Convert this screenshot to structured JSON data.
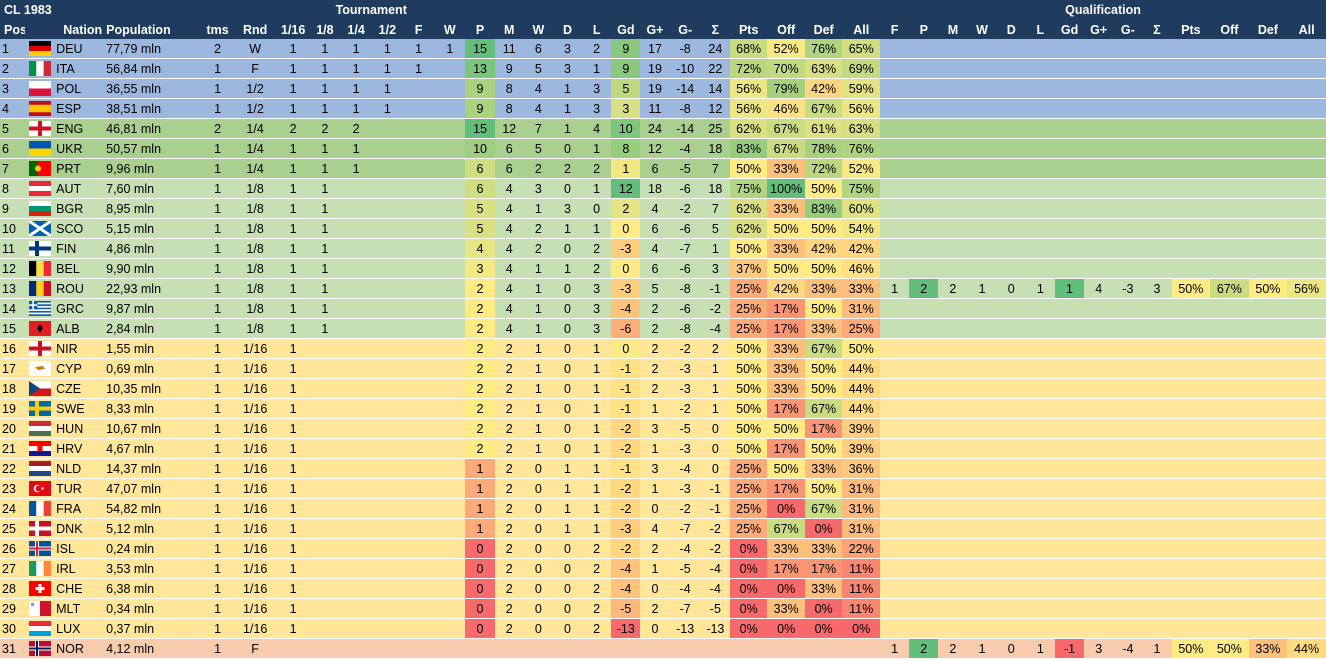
{
  "header": {
    "title": "CL 1983",
    "tournament_label": "Tournament",
    "qualification_label": "Qualification",
    "cols": [
      "Pos",
      "Nation",
      "Population",
      "tms",
      "Rnd",
      "1/16",
      "1/8",
      "1/4",
      "1/2",
      "F",
      "W",
      "P",
      "M",
      "W",
      "D",
      "L",
      "Gd",
      "G+",
      "G-",
      "Σ",
      "Pts",
      "Off",
      "Def",
      "All"
    ],
    "qcols": [
      "F",
      "P",
      "M",
      "W",
      "D",
      "L",
      "Gd",
      "G+",
      "G-",
      "Σ",
      "Pts",
      "Off",
      "Def",
      "All"
    ]
  },
  "colors": {
    "header_bg": "#1f3b5e",
    "zone_blue": "#9db8de",
    "zone_green": "#a9d08e",
    "zone_lightgreen": "#c6e0b4",
    "zone_yellow": "#ffe699",
    "zone_pink": "#f8cbad",
    "cell_green": "#63be7b",
    "cell_lightgreen": "#c4e3b0",
    "cell_yellow": "#ffeb84",
    "cell_orange": "#fbb37d",
    "cell_red": "#f8696b"
  },
  "rows": [
    {
      "pos": "1",
      "nation": "DEU",
      "flag": "deu-flag",
      "pop": "77,79 mln",
      "tms": "2",
      "rnd": "W",
      "t": [
        "1",
        "1",
        "1",
        "1",
        "1",
        "1"
      ],
      "p": "15",
      "m": "11",
      "w": "6",
      "d": "3",
      "l": "2",
      "gd": "9",
      "gp": "17",
      "gm": "-8",
      "s": "24",
      "pts": "68%",
      "off": "52%",
      "def": "76%",
      "all": "65%",
      "zone": "blue",
      "q": null
    },
    {
      "pos": "2",
      "nation": "ITA",
      "flag": "ita-flag",
      "pop": "56,84 mln",
      "tms": "1",
      "rnd": "F",
      "t": [
        "1",
        "1",
        "1",
        "1",
        "1",
        ""
      ],
      "p": "13",
      "m": "9",
      "w": "5",
      "d": "3",
      "l": "1",
      "gd": "9",
      "gp": "19",
      "gm": "-10",
      "s": "22",
      "pts": "72%",
      "off": "70%",
      "def": "63%",
      "all": "69%",
      "zone": "blue",
      "q": null
    },
    {
      "pos": "3",
      "nation": "POL",
      "flag": "pol-flag",
      "pop": "36,55 mln",
      "tms": "1",
      "rnd": "1/2",
      "t": [
        "1",
        "1",
        "1",
        "1",
        "",
        ""
      ],
      "p": "9",
      "m": "8",
      "w": "4",
      "d": "1",
      "l": "3",
      "gd": "5",
      "gp": "19",
      "gm": "-14",
      "s": "14",
      "pts": "56%",
      "off": "79%",
      "def": "42%",
      "all": "59%",
      "zone": "blue",
      "q": null
    },
    {
      "pos": "4",
      "nation": "ESP",
      "flag": "esp-flag",
      "pop": "38,51 mln",
      "tms": "1",
      "rnd": "1/2",
      "t": [
        "1",
        "1",
        "1",
        "1",
        "",
        ""
      ],
      "p": "9",
      "m": "8",
      "w": "4",
      "d": "1",
      "l": "3",
      "gd": "3",
      "gp": "11",
      "gm": "-8",
      "s": "12",
      "pts": "56%",
      "off": "46%",
      "def": "67%",
      "all": "56%",
      "zone": "blue",
      "q": null
    },
    {
      "pos": "5",
      "nation": "ENG",
      "flag": "eng-flag",
      "pop": "46,81 mln",
      "tms": "2",
      "rnd": "1/4",
      "t": [
        "2",
        "2",
        "2",
        "",
        "",
        ""
      ],
      "p": "15",
      "m": "12",
      "w": "7",
      "d": "1",
      "l": "4",
      "gd": "10",
      "gp": "24",
      "gm": "-14",
      "s": "25",
      "pts": "62%",
      "off": "67%",
      "def": "61%",
      "all": "63%",
      "zone": "green",
      "q": null
    },
    {
      "pos": "6",
      "nation": "UKR",
      "flag": "ukr-flag",
      "pop": "50,57 mln",
      "tms": "1",
      "rnd": "1/4",
      "t": [
        "1",
        "1",
        "1",
        "",
        "",
        ""
      ],
      "p": "10",
      "m": "6",
      "w": "5",
      "d": "0",
      "l": "1",
      "gd": "8",
      "gp": "12",
      "gm": "-4",
      "s": "18",
      "pts": "83%",
      "off": "67%",
      "def": "78%",
      "all": "76%",
      "zone": "green",
      "q": null
    },
    {
      "pos": "7",
      "nation": "PRT",
      "flag": "prt-flag",
      "pop": "9,96 mln",
      "tms": "1",
      "rnd": "1/4",
      "t": [
        "1",
        "1",
        "1",
        "",
        "",
        ""
      ],
      "p": "6",
      "m": "6",
      "w": "2",
      "d": "2",
      "l": "2",
      "gd": "1",
      "gp": "6",
      "gm": "-5",
      "s": "7",
      "pts": "50%",
      "off": "33%",
      "def": "72%",
      "all": "52%",
      "zone": "green",
      "q": null
    },
    {
      "pos": "8",
      "nation": "AUT",
      "flag": "aut-flag",
      "pop": "7,60 mln",
      "tms": "1",
      "rnd": "1/8",
      "t": [
        "1",
        "1",
        "",
        "",
        "",
        ""
      ],
      "p": "6",
      "m": "4",
      "w": "3",
      "d": "0",
      "l": "1",
      "gd": "12",
      "gp": "18",
      "gm": "-6",
      "s": "18",
      "pts": "75%",
      "off": "100%",
      "def": "50%",
      "all": "75%",
      "zone": "lgreen",
      "q": null
    },
    {
      "pos": "9",
      "nation": "BGR",
      "flag": "bgr-flag",
      "pop": "8,95 mln",
      "tms": "1",
      "rnd": "1/8",
      "t": [
        "1",
        "1",
        "",
        "",
        "",
        ""
      ],
      "p": "5",
      "m": "4",
      "w": "1",
      "d": "3",
      "l": "0",
      "gd": "2",
      "gp": "4",
      "gm": "-2",
      "s": "7",
      "pts": "62%",
      "off": "33%",
      "def": "83%",
      "all": "60%",
      "zone": "lgreen",
      "q": null
    },
    {
      "pos": "10",
      "nation": "SCO",
      "flag": "sco-flag",
      "pop": "5,15 mln",
      "tms": "1",
      "rnd": "1/8",
      "t": [
        "1",
        "1",
        "",
        "",
        "",
        ""
      ],
      "p": "5",
      "m": "4",
      "w": "2",
      "d": "1",
      "l": "1",
      "gd": "0",
      "gp": "6",
      "gm": "-6",
      "s": "5",
      "pts": "62%",
      "off": "50%",
      "def": "50%",
      "all": "54%",
      "zone": "lgreen",
      "q": null
    },
    {
      "pos": "11",
      "nation": "FIN",
      "flag": "fin-flag",
      "pop": "4,86 mln",
      "tms": "1",
      "rnd": "1/8",
      "t": [
        "1",
        "1",
        "",
        "",
        "",
        ""
      ],
      "p": "4",
      "m": "4",
      "w": "2",
      "d": "0",
      "l": "2",
      "gd": "-3",
      "gp": "4",
      "gm": "-7",
      "s": "1",
      "pts": "50%",
      "off": "33%",
      "def": "42%",
      "all": "42%",
      "zone": "lgreen",
      "q": null
    },
    {
      "pos": "12",
      "nation": "BEL",
      "flag": "bel-flag",
      "pop": "9,90 mln",
      "tms": "1",
      "rnd": "1/8",
      "t": [
        "1",
        "1",
        "",
        "",
        "",
        ""
      ],
      "p": "3",
      "m": "4",
      "w": "1",
      "d": "1",
      "l": "2",
      "gd": "0",
      "gp": "6",
      "gm": "-6",
      "s": "3",
      "pts": "37%",
      "off": "50%",
      "def": "50%",
      "all": "46%",
      "zone": "lgreen",
      "q": null
    },
    {
      "pos": "13",
      "nation": "ROU",
      "flag": "rou-flag",
      "pop": "22,93 mln",
      "tms": "1",
      "rnd": "1/8",
      "t": [
        "1",
        "1",
        "",
        "",
        "",
        ""
      ],
      "p": "2",
      "m": "4",
      "w": "1",
      "d": "0",
      "l": "3",
      "gd": "-3",
      "gp": "5",
      "gm": "-8",
      "s": "-1",
      "pts": "25%",
      "off": "42%",
      "def": "33%",
      "all": "33%",
      "zone": "lgreen",
      "q": {
        "f": "1",
        "p": "2",
        "m": "2",
        "w": "1",
        "d": "0",
        "l": "1",
        "gd": "1",
        "gp": "4",
        "gm": "-3",
        "s": "3",
        "pts": "50%",
        "off": "67%",
        "def": "50%",
        "all": "56%"
      }
    },
    {
      "pos": "14",
      "nation": "GRC",
      "flag": "grc-flag",
      "pop": "9,87 mln",
      "tms": "1",
      "rnd": "1/8",
      "t": [
        "1",
        "1",
        "",
        "",
        "",
        ""
      ],
      "p": "2",
      "m": "4",
      "w": "1",
      "d": "0",
      "l": "3",
      "gd": "-4",
      "gp": "2",
      "gm": "-6",
      "s": "-2",
      "pts": "25%",
      "off": "17%",
      "def": "50%",
      "all": "31%",
      "zone": "lgreen",
      "q": null
    },
    {
      "pos": "15",
      "nation": "ALB",
      "flag": "alb-flag",
      "pop": "2,84 mln",
      "tms": "1",
      "rnd": "1/8",
      "t": [
        "1",
        "1",
        "",
        "",
        "",
        ""
      ],
      "p": "2",
      "m": "4",
      "w": "1",
      "d": "0",
      "l": "3",
      "gd": "-6",
      "gp": "2",
      "gm": "-8",
      "s": "-4",
      "pts": "25%",
      "off": "17%",
      "def": "33%",
      "all": "25%",
      "zone": "lgreen",
      "q": null
    },
    {
      "pos": "16",
      "nation": "NIR",
      "flag": "nir-flag",
      "pop": "1,55 mln",
      "tms": "1",
      "rnd": "1/16",
      "t": [
        "1",
        "",
        "",
        "",
        "",
        ""
      ],
      "p": "2",
      "m": "2",
      "w": "1",
      "d": "0",
      "l": "1",
      "gd": "0",
      "gp": "2",
      "gm": "-2",
      "s": "2",
      "pts": "50%",
      "off": "33%",
      "def": "67%",
      "all": "50%",
      "zone": "yellow",
      "q": null
    },
    {
      "pos": "17",
      "nation": "CYP",
      "flag": "cyp-flag",
      "pop": "0,69 mln",
      "tms": "1",
      "rnd": "1/16",
      "t": [
        "1",
        "",
        "",
        "",
        "",
        ""
      ],
      "p": "2",
      "m": "2",
      "w": "1",
      "d": "0",
      "l": "1",
      "gd": "-1",
      "gp": "2",
      "gm": "-3",
      "s": "1",
      "pts": "50%",
      "off": "33%",
      "def": "50%",
      "all": "44%",
      "zone": "yellow",
      "q": null
    },
    {
      "pos": "18",
      "nation": "CZE",
      "flag": "cze-flag",
      "pop": "10,35 mln",
      "tms": "1",
      "rnd": "1/16",
      "t": [
        "1",
        "",
        "",
        "",
        "",
        ""
      ],
      "p": "2",
      "m": "2",
      "w": "1",
      "d": "0",
      "l": "1",
      "gd": "-1",
      "gp": "2",
      "gm": "-3",
      "s": "1",
      "pts": "50%",
      "off": "33%",
      "def": "50%",
      "all": "44%",
      "zone": "yellow",
      "q": null
    },
    {
      "pos": "19",
      "nation": "SWE",
      "flag": "swe-flag",
      "pop": "8,33 mln",
      "tms": "1",
      "rnd": "1/16",
      "t": [
        "1",
        "",
        "",
        "",
        "",
        ""
      ],
      "p": "2",
      "m": "2",
      "w": "1",
      "d": "0",
      "l": "1",
      "gd": "-1",
      "gp": "1",
      "gm": "-2",
      "s": "1",
      "pts": "50%",
      "off": "17%",
      "def": "67%",
      "all": "44%",
      "zone": "yellow",
      "q": null
    },
    {
      "pos": "20",
      "nation": "HUN",
      "flag": "hun-flag",
      "pop": "10,67 mln",
      "tms": "1",
      "rnd": "1/16",
      "t": [
        "1",
        "",
        "",
        "",
        "",
        ""
      ],
      "p": "2",
      "m": "2",
      "w": "1",
      "d": "0",
      "l": "1",
      "gd": "-2",
      "gp": "3",
      "gm": "-5",
      "s": "0",
      "pts": "50%",
      "off": "50%",
      "def": "17%",
      "all": "39%",
      "zone": "yellow",
      "q": null
    },
    {
      "pos": "21",
      "nation": "HRV",
      "flag": "hrv-flag",
      "pop": "4,67 mln",
      "tms": "1",
      "rnd": "1/16",
      "t": [
        "1",
        "",
        "",
        "",
        "",
        ""
      ],
      "p": "2",
      "m": "2",
      "w": "1",
      "d": "0",
      "l": "1",
      "gd": "-2",
      "gp": "1",
      "gm": "-3",
      "s": "0",
      "pts": "50%",
      "off": "17%",
      "def": "50%",
      "all": "39%",
      "zone": "yellow",
      "q": null
    },
    {
      "pos": "22",
      "nation": "NLD",
      "flag": "nld-flag",
      "pop": "14,37 mln",
      "tms": "1",
      "rnd": "1/16",
      "t": [
        "1",
        "",
        "",
        "",
        "",
        ""
      ],
      "p": "1",
      "m": "2",
      "w": "0",
      "d": "1",
      "l": "1",
      "gd": "-1",
      "gp": "3",
      "gm": "-4",
      "s": "0",
      "pts": "25%",
      "off": "50%",
      "def": "33%",
      "all": "36%",
      "zone": "yellow",
      "q": null
    },
    {
      "pos": "23",
      "nation": "TUR",
      "flag": "tur-flag",
      "pop": "47,07 mln",
      "tms": "1",
      "rnd": "1/16",
      "t": [
        "1",
        "",
        "",
        "",
        "",
        ""
      ],
      "p": "1",
      "m": "2",
      "w": "0",
      "d": "1",
      "l": "1",
      "gd": "-2",
      "gp": "1",
      "gm": "-3",
      "s": "-1",
      "pts": "25%",
      "off": "17%",
      "def": "50%",
      "all": "31%",
      "zone": "yellow",
      "q": null
    },
    {
      "pos": "24",
      "nation": "FRA",
      "flag": "fra-flag",
      "pop": "54,82 mln",
      "tms": "1",
      "rnd": "1/16",
      "t": [
        "1",
        "",
        "",
        "",
        "",
        ""
      ],
      "p": "1",
      "m": "2",
      "w": "0",
      "d": "1",
      "l": "1",
      "gd": "-2",
      "gp": "0",
      "gm": "-2",
      "s": "-1",
      "pts": "25%",
      "off": "0%",
      "def": "67%",
      "all": "31%",
      "zone": "yellow",
      "q": null
    },
    {
      "pos": "25",
      "nation": "DNK",
      "flag": "dnk-flag",
      "pop": "5,12 mln",
      "tms": "1",
      "rnd": "1/16",
      "t": [
        "1",
        "",
        "",
        "",
        "",
        ""
      ],
      "p": "1",
      "m": "2",
      "w": "0",
      "d": "1",
      "l": "1",
      "gd": "-3",
      "gp": "4",
      "gm": "-7",
      "s": "-2",
      "pts": "25%",
      "off": "67%",
      "def": "0%",
      "all": "31%",
      "zone": "yellow",
      "q": null
    },
    {
      "pos": "26",
      "nation": "ISL",
      "flag": "isl-flag",
      "pop": "0,24 mln",
      "tms": "1",
      "rnd": "1/16",
      "t": [
        "1",
        "",
        "",
        "",
        "",
        ""
      ],
      "p": "0",
      "m": "2",
      "w": "0",
      "d": "0",
      "l": "2",
      "gd": "-2",
      "gp": "2",
      "gm": "-4",
      "s": "-2",
      "pts": "0%",
      "off": "33%",
      "def": "33%",
      "all": "22%",
      "zone": "yellow",
      "q": null
    },
    {
      "pos": "27",
      "nation": "IRL",
      "flag": "irl-flag",
      "pop": "3,53 mln",
      "tms": "1",
      "rnd": "1/16",
      "t": [
        "1",
        "",
        "",
        "",
        "",
        ""
      ],
      "p": "0",
      "m": "2",
      "w": "0",
      "d": "0",
      "l": "2",
      "gd": "-4",
      "gp": "1",
      "gm": "-5",
      "s": "-4",
      "pts": "0%",
      "off": "17%",
      "def": "17%",
      "all": "11%",
      "zone": "yellow",
      "q": null
    },
    {
      "pos": "28",
      "nation": "CHE",
      "flag": "che-flag",
      "pop": "6,38 mln",
      "tms": "1",
      "rnd": "1/16",
      "t": [
        "1",
        "",
        "",
        "",
        "",
        ""
      ],
      "p": "0",
      "m": "2",
      "w": "0",
      "d": "0",
      "l": "2",
      "gd": "-4",
      "gp": "0",
      "gm": "-4",
      "s": "-4",
      "pts": "0%",
      "off": "0%",
      "def": "33%",
      "all": "11%",
      "zone": "yellow",
      "q": null
    },
    {
      "pos": "29",
      "nation": "MLT",
      "flag": "mlt-flag",
      "pop": "0,34 mln",
      "tms": "1",
      "rnd": "1/16",
      "t": [
        "1",
        "",
        "",
        "",
        "",
        ""
      ],
      "p": "0",
      "m": "2",
      "w": "0",
      "d": "0",
      "l": "2",
      "gd": "-5",
      "gp": "2",
      "gm": "-7",
      "s": "-5",
      "pts": "0%",
      "off": "33%",
      "def": "0%",
      "all": "11%",
      "zone": "yellow",
      "q": null
    },
    {
      "pos": "30",
      "nation": "LUX",
      "flag": "lux-flag",
      "pop": "0,37 mln",
      "tms": "1",
      "rnd": "1/16",
      "t": [
        "1",
        "",
        "",
        "",
        "",
        ""
      ],
      "p": "0",
      "m": "2",
      "w": "0",
      "d": "0",
      "l": "2",
      "gd": "-13",
      "gp": "0",
      "gm": "-13",
      "s": "-13",
      "pts": "0%",
      "off": "0%",
      "def": "0%",
      "all": "0%",
      "zone": "yellow",
      "q": null
    },
    {
      "pos": "31",
      "nation": "NOR",
      "flag": "nor-flag",
      "pop": "4,12 mln",
      "tms": "1",
      "rnd": "F",
      "t": [
        "",
        "",
        "",
        "",
        "",
        ""
      ],
      "p": "",
      "m": "",
      "w": "",
      "d": "",
      "l": "",
      "gd": "",
      "gp": "",
      "gm": "",
      "s": "",
      "pts": "",
      "off": "",
      "def": "",
      "all": "",
      "zone": "pink",
      "q": {
        "f": "1",
        "p": "2",
        "m": "2",
        "w": "1",
        "d": "0",
        "l": "1",
        "gd": "-1",
        "gp": "3",
        "gm": "-4",
        "s": "1",
        "pts": "50%",
        "off": "50%",
        "def": "33%",
        "all": "44%"
      }
    }
  ]
}
